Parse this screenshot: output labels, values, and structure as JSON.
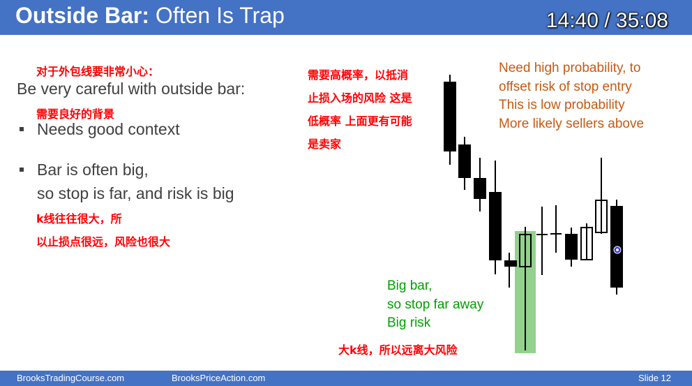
{
  "header": {
    "title_bold": "Outside Bar:",
    "title_rest": "Often Is Trap",
    "timer": "14:40 / 35:08"
  },
  "left": {
    "zh_careful": "对于外包线要非常小心：",
    "heading": "Be very careful with outside bar:",
    "zh_context": "需要良好的背景",
    "bullet1": "Needs good context",
    "bullet2_line1": "Bar is often big,",
    "bullet2_line2": "so stop is far, and risk is big",
    "zh_big_line1": "k线往往很大，所",
    "zh_big_line2": "以止损点很远，风险也很大"
  },
  "annotations": {
    "zh_top": [
      "需要高概率，以抵消",
      "止损入场的风险 这是",
      "低概率 上面更有可能",
      "是卖家"
    ],
    "en_top": [
      "Need high probability, to",
      "offset risk of stop entry",
      "This is low probability",
      "More likely sellers above"
    ],
    "en_bottom": [
      "Big bar,",
      "so stop far away",
      "Big risk"
    ],
    "zh_bottom": "大k线，所以远离大风险"
  },
  "footer": {
    "left": "BrooksTradingCourse.com",
    "middle": "BrooksPriceAction.com",
    "slide": "Slide  12"
  },
  "colors": {
    "header": "#4472c4",
    "red_text": "#ff0000",
    "orange_text": "#c55a11",
    "green_text": "#00a000",
    "highlight": "#92d28c"
  }
}
